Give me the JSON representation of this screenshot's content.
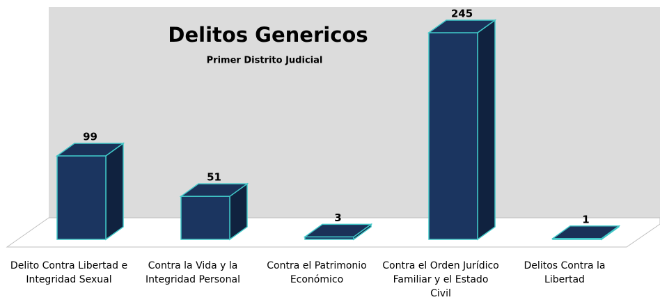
{
  "chart_data": {
    "type": "bar3d",
    "title": "Delitos Genericos",
    "subtitle": "Primer Distrito Judicial",
    "categories": [
      "Delito Contra Libertad e Integridad Sexual",
      "Contra la Vida y la Integridad Personal",
      "Contra el Patrimonio Económico",
      "Contra el Orden Jurídico Familiar y el Estado Civil",
      "Delitos Contra la Libertad"
    ],
    "values": [
      99,
      51,
      3,
      245,
      1
    ],
    "color": "#1b3560",
    "edge_color": "#40c8c8"
  }
}
